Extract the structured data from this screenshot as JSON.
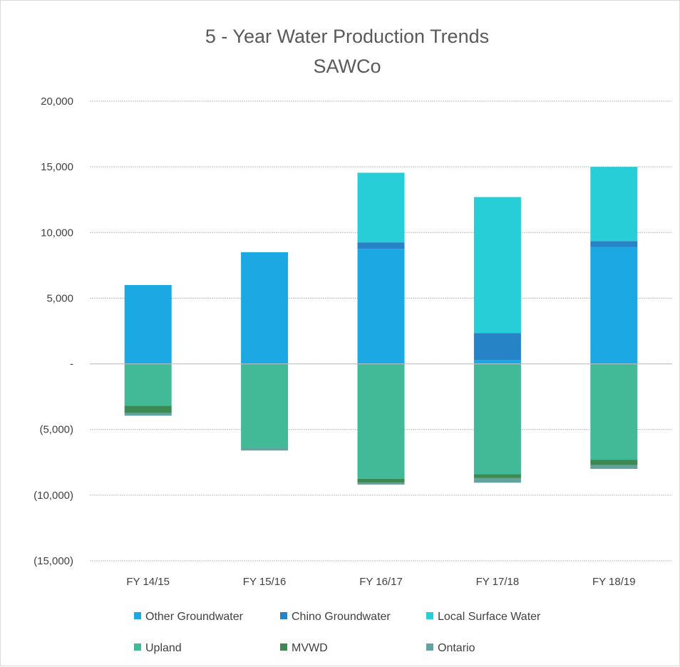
{
  "chart_data": {
    "type": "bar",
    "stacked": true,
    "title": "5 - Year Water Production Trends",
    "subtitle": "SAWCo",
    "xlabel": "",
    "ylabel": "",
    "ylim": [
      -15000,
      20000
    ],
    "yticks": [
      20000,
      15000,
      10000,
      5000,
      0,
      -5000,
      -10000,
      -15000
    ],
    "ytick_labels": [
      "20,000",
      "15,000",
      "10,000",
      "5,000",
      "-",
      "(5,000)",
      "(10,000)",
      "(15,000)"
    ],
    "grid": true,
    "legend_position": "bottom",
    "categories": [
      "FY 14/15",
      "FY 15/16",
      "FY 16/17",
      "FY 17/18",
      "FY 18/19"
    ],
    "series": [
      {
        "name": "Other Groundwater",
        "color": "#1ca9e3",
        "values": [
          6000,
          8500,
          8750,
          300,
          8900
        ]
      },
      {
        "name": "Chino Groundwater",
        "color": "#2683c6",
        "values": [
          0,
          0,
          500,
          2050,
          450
        ]
      },
      {
        "name": "Local Surface Water",
        "color": "#27ced7",
        "values": [
          0,
          0,
          5300,
          10350,
          5650
        ]
      },
      {
        "name": "Upland",
        "color": "#42ba97",
        "values": [
          -3200,
          -6400,
          -8750,
          -8400,
          -7300
        ]
      },
      {
        "name": "MVWD",
        "color": "#3e8853",
        "values": [
          -550,
          0,
          -300,
          -300,
          -400
        ]
      },
      {
        "name": "Ontario",
        "color": "#62a39f",
        "values": [
          -200,
          -200,
          -150,
          -350,
          -300
        ]
      }
    ]
  }
}
